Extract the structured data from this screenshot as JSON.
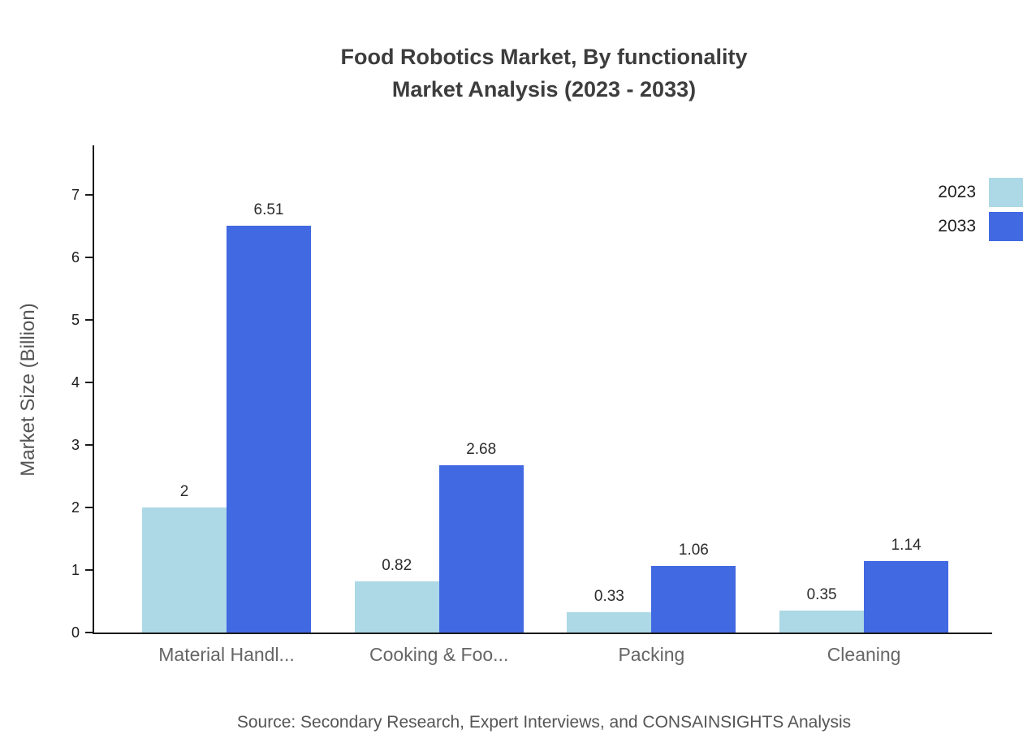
{
  "chart_data": {
    "type": "bar",
    "title_lines": [
      "Food Robotics Market, By functionality",
      "Market Analysis (2023 - 2033)"
    ],
    "categories": [
      "Material Handl...",
      "Cooking & Foo...",
      "Packing",
      "Cleaning"
    ],
    "series": [
      {
        "name": "2023",
        "color": "#ADD8E6",
        "values": [
          2,
          0.82,
          0.33,
          0.35
        ]
      },
      {
        "name": "2033",
        "color": "#4169E1",
        "values": [
          6.51,
          2.68,
          1.06,
          1.14
        ]
      }
    ],
    "value_labels": [
      [
        "2",
        "0.82",
        "0.33",
        "0.35"
      ],
      [
        "6.51",
        "2.68",
        "1.06",
        "1.14"
      ]
    ],
    "xlabel": "",
    "ylabel": "Market Size (Billion)",
    "ylim": [
      0,
      7
    ],
    "ytick_step": 1,
    "yticks": [
      "0",
      "1",
      "2",
      "3",
      "4",
      "5",
      "6",
      "7"
    ],
    "grid": false,
    "legend_position": "top-right",
    "source": "Source: Secondary Research, Expert Interviews, and CONSAINSIGHTS Analysis"
  }
}
